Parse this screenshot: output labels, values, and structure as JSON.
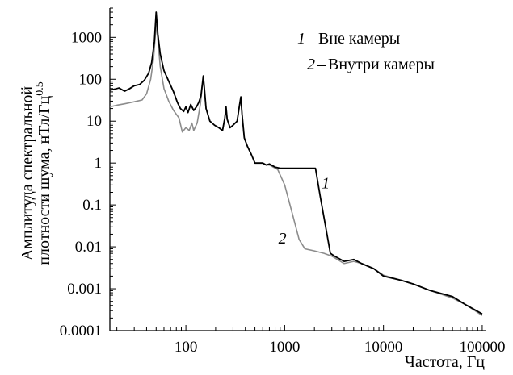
{
  "chart_data": {
    "type": "line",
    "title": "",
    "xlabel": "Частота, Гц",
    "ylabel_line1": "Амплитуда спектральной",
    "ylabel_line2": "плотности шума, нТл/Гц",
    "ylabel_sup": "0.5",
    "x_scale": "log",
    "y_scale": "log",
    "xlim": [
      17,
      110000
    ],
    "ylim": [
      0.0001,
      5000
    ],
    "grid": false,
    "x_ticks": [
      {
        "value": 100,
        "label": "100"
      },
      {
        "value": 1000,
        "label": "1000"
      },
      {
        "value": 10000,
        "label": "10000"
      },
      {
        "value": 100000,
        "label": "100000"
      }
    ],
    "y_ticks": [
      {
        "value": 1000,
        "label": "1000"
      },
      {
        "value": 100,
        "label": "100"
      },
      {
        "value": 10,
        "label": "10"
      },
      {
        "value": 1,
        "label": "1"
      },
      {
        "value": 0.1,
        "label": "0.1"
      },
      {
        "value": 0.01,
        "label": "0.01"
      },
      {
        "value": 0.001,
        "label": "0.001"
      },
      {
        "value": 0.0001,
        "label": "0.0001"
      }
    ],
    "legend": {
      "placement": "top-right",
      "items": [
        {
          "num": "1",
          "dash": "–",
          "text": "Вне камеры"
        },
        {
          "num": "2",
          "dash": "–",
          "text": "Внутри камеры"
        }
      ]
    },
    "curve_labels": [
      {
        "series": 0,
        "text": "1",
        "x": 2600,
        "y": 0.25
      },
      {
        "series": 1,
        "text": "2",
        "x": 950,
        "y": 0.012
      }
    ],
    "series": [
      {
        "key": "outside",
        "color": "#000000",
        "points": [
          [
            17,
            55
          ],
          [
            19,
            58
          ],
          [
            21,
            62
          ],
          [
            24,
            52
          ],
          [
            27,
            60
          ],
          [
            30,
            70
          ],
          [
            34,
            75
          ],
          [
            38,
            95
          ],
          [
            42,
            140
          ],
          [
            45,
            250
          ],
          [
            48,
            800
          ],
          [
            50,
            4000
          ],
          [
            52,
            1200
          ],
          [
            55,
            400
          ],
          [
            60,
            160
          ],
          [
            67,
            90
          ],
          [
            75,
            50
          ],
          [
            82,
            28
          ],
          [
            88,
            20
          ],
          [
            95,
            17
          ],
          [
            100,
            22
          ],
          [
            105,
            16
          ],
          [
            112,
            25
          ],
          [
            120,
            18
          ],
          [
            128,
            22
          ],
          [
            135,
            28
          ],
          [
            142,
            40
          ],
          [
            147,
            80
          ],
          [
            150,
            120
          ],
          [
            154,
            60
          ],
          [
            160,
            20
          ],
          [
            175,
            10
          ],
          [
            195,
            8
          ],
          [
            215,
            7
          ],
          [
            235,
            6
          ],
          [
            248,
            12
          ],
          [
            255,
            22
          ],
          [
            262,
            11
          ],
          [
            280,
            7
          ],
          [
            300,
            8
          ],
          [
            330,
            10
          ],
          [
            350,
            25
          ],
          [
            360,
            38
          ],
          [
            370,
            15
          ],
          [
            390,
            4
          ],
          [
            420,
            2.5
          ],
          [
            460,
            1.6
          ],
          [
            500,
            1.0
          ],
          [
            550,
            1.0
          ],
          [
            600,
            1.0
          ],
          [
            650,
            0.9
          ],
          [
            700,
            0.95
          ],
          [
            800,
            0.8
          ],
          [
            900,
            0.75
          ],
          [
            1000,
            0.75
          ],
          [
            1500,
            0.75
          ],
          [
            2000,
            0.75
          ],
          [
            2050,
            0.75
          ],
          [
            2300,
            0.15
          ],
          [
            2600,
            0.03
          ],
          [
            2900,
            0.007
          ],
          [
            3200,
            0.006
          ],
          [
            4000,
            0.0045
          ],
          [
            5000,
            0.005
          ],
          [
            6000,
            0.004
          ],
          [
            8000,
            0.003
          ],
          [
            10000,
            0.002
          ],
          [
            15000,
            0.0016
          ],
          [
            20000,
            0.0013
          ],
          [
            30000,
            0.0009
          ],
          [
            50000,
            0.00065
          ],
          [
            70000,
            0.0004
          ],
          [
            100000,
            0.00025
          ]
        ]
      },
      {
        "key": "inside",
        "color": "#8c8c8c",
        "points": [
          [
            17,
            22
          ],
          [
            20,
            24
          ],
          [
            24,
            26
          ],
          [
            28,
            28
          ],
          [
            32,
            30
          ],
          [
            36,
            32
          ],
          [
            40,
            45
          ],
          [
            44,
            100
          ],
          [
            47,
            300
          ],
          [
            50,
            2000
          ],
          [
            52,
            900
          ],
          [
            55,
            200
          ],
          [
            60,
            60
          ],
          [
            67,
            30
          ],
          [
            75,
            18
          ],
          [
            85,
            12
          ],
          [
            92,
            5.5
          ],
          [
            100,
            7
          ],
          [
            108,
            6
          ],
          [
            115,
            9
          ],
          [
            120,
            6
          ],
          [
            130,
            9
          ],
          [
            140,
            25
          ],
          [
            147,
            70
          ],
          [
            150,
            100
          ],
          [
            155,
            45
          ],
          [
            160,
            20
          ],
          [
            175,
            10
          ],
          [
            195,
            8
          ],
          [
            215,
            7
          ],
          [
            235,
            6
          ],
          [
            248,
            12
          ],
          [
            255,
            20
          ],
          [
            262,
            11
          ],
          [
            280,
            7
          ],
          [
            300,
            8
          ],
          [
            330,
            10
          ],
          [
            350,
            25
          ],
          [
            360,
            35
          ],
          [
            370,
            15
          ],
          [
            390,
            4
          ],
          [
            420,
            2.5
          ],
          [
            460,
            1.6
          ],
          [
            500,
            1.0
          ],
          [
            550,
            1.0
          ],
          [
            600,
            1.0
          ],
          [
            650,
            0.9
          ],
          [
            700,
            0.9
          ],
          [
            850,
            0.7
          ],
          [
            1000,
            0.3
          ],
          [
            1200,
            0.06
          ],
          [
            1400,
            0.015
          ],
          [
            1600,
            0.009
          ],
          [
            2000,
            0.008
          ],
          [
            2500,
            0.007
          ],
          [
            3000,
            0.006
          ],
          [
            4000,
            0.004
          ],
          [
            5000,
            0.0045
          ],
          [
            6000,
            0.004
          ],
          [
            8000,
            0.003
          ],
          [
            10000,
            0.0021
          ],
          [
            15000,
            0.0016
          ],
          [
            20000,
            0.0013
          ],
          [
            30000,
            0.0009
          ],
          [
            50000,
            0.0006
          ],
          [
            70000,
            0.0004
          ],
          [
            100000,
            0.00023
          ]
        ]
      }
    ]
  }
}
